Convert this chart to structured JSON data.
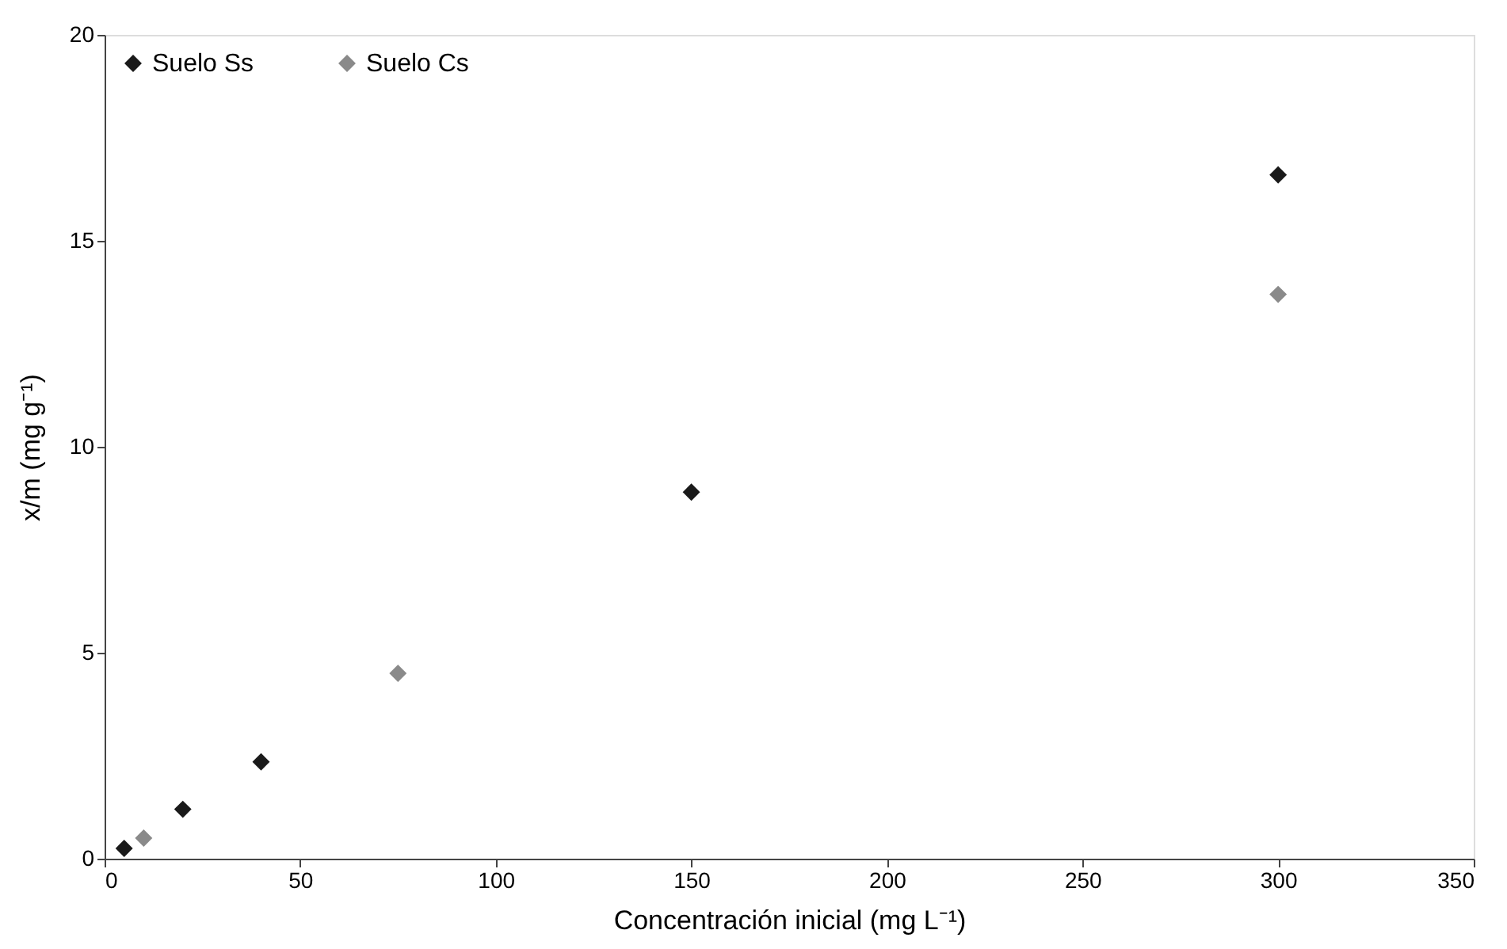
{
  "chart_data": {
    "type": "scatter",
    "xlabel": "Concentración inicial (mg L⁻¹)",
    "ylabel": "x/m (mg g⁻¹)",
    "series": [
      {
        "name": "Suelo Ss",
        "color": "#1a1a1a",
        "x": [
          5,
          20,
          40,
          150,
          300
        ],
        "values": [
          0.25,
          1.2,
          2.35,
          8.9,
          16.6
        ]
      },
      {
        "name": "Suelo Cs",
        "color": "#8a8a8a",
        "x": [
          10,
          75,
          300
        ],
        "values": [
          0.5,
          4.5,
          13.7
        ]
      }
    ],
    "xlim": [
      0,
      350
    ],
    "xticks": [
      0,
      50,
      100,
      150,
      200,
      250,
      300,
      350
    ],
    "ylim": [
      0,
      20
    ],
    "yticks": [
      0,
      5,
      10,
      15,
      20
    ],
    "grid": false,
    "legend": "top left",
    "marker": "diamond"
  }
}
